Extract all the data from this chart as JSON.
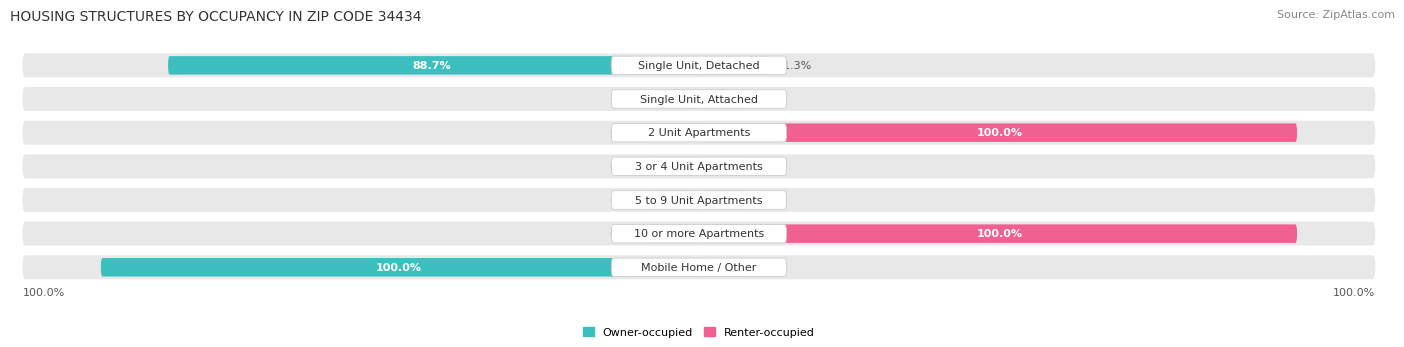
{
  "title": "HOUSING STRUCTURES BY OCCUPANCY IN ZIP CODE 34434",
  "source": "Source: ZipAtlas.com",
  "categories": [
    "Single Unit, Detached",
    "Single Unit, Attached",
    "2 Unit Apartments",
    "3 or 4 Unit Apartments",
    "5 to 9 Unit Apartments",
    "10 or more Apartments",
    "Mobile Home / Other"
  ],
  "owner_pct": [
    88.7,
    0.0,
    0.0,
    0.0,
    0.0,
    0.0,
    100.0
  ],
  "renter_pct": [
    11.3,
    0.0,
    100.0,
    0.0,
    0.0,
    100.0,
    0.0
  ],
  "owner_color": "#3DBFBF",
  "renter_color": "#F06090",
  "owner_color_light": "#A8DCDC",
  "renter_color_light": "#F5B8C8",
  "bg_color": "#FFFFFF",
  "row_bg_color": "#E8E8E8",
  "title_fontsize": 10,
  "source_fontsize": 8,
  "bar_label_fontsize": 8,
  "category_fontsize": 8,
  "legend_fontsize": 8,
  "axis_label_fontsize": 8,
  "left_axis_label": "100.0%",
  "right_axis_label": "100.0%"
}
